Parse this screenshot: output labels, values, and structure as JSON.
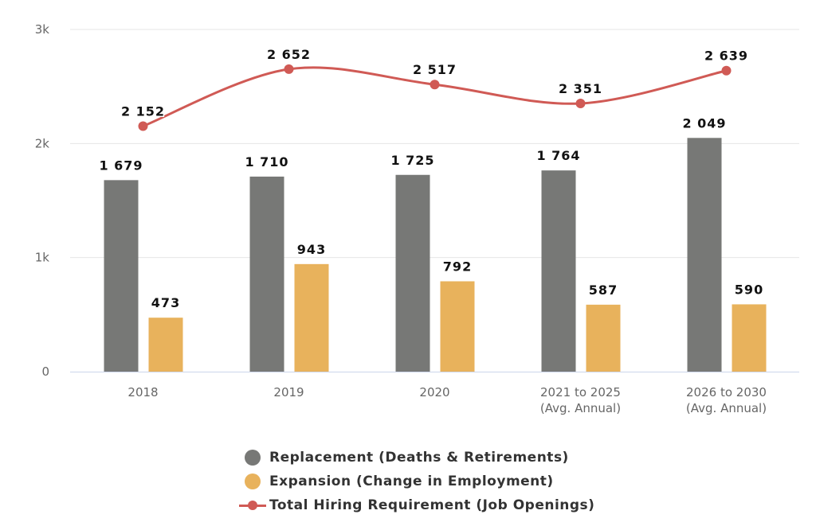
{
  "chart_data": {
    "type": "bar",
    "categories": [
      "2018",
      "2019",
      "2020",
      "2021 to 2025|(Avg. Annual)",
      "2026 to 2030|(Avg. Annual)"
    ],
    "series": [
      {
        "name": "Replacement (Deaths & Retirements)",
        "type": "bar",
        "color": "#777876",
        "values": [
          1679,
          1710,
          1725,
          1764,
          2049
        ],
        "labels": [
          "1 679",
          "1 710",
          "1 725",
          "1 764",
          "2 049"
        ]
      },
      {
        "name": "Expansion (Change in Employment)",
        "type": "bar",
        "color": "#E8B25C",
        "values": [
          473,
          943,
          792,
          587,
          590
        ],
        "labels": [
          "473",
          "943",
          "792",
          "587",
          "590"
        ]
      },
      {
        "name": "Total Hiring Requirement (Job Openings)",
        "type": "line",
        "color": "#D05A55",
        "values": [
          2152,
          2652,
          2517,
          2351,
          2639
        ],
        "labels": [
          "2 152",
          "2 652",
          "2 517",
          "2 351",
          "2 639"
        ]
      }
    ],
    "yticks": [
      0,
      1000,
      2000,
      3000
    ],
    "ytick_labels": [
      "0",
      "1k",
      "2k",
      "3k"
    ],
    "ylim": [
      0,
      3000
    ],
    "grid": true,
    "legend_position": "bottom-center"
  }
}
